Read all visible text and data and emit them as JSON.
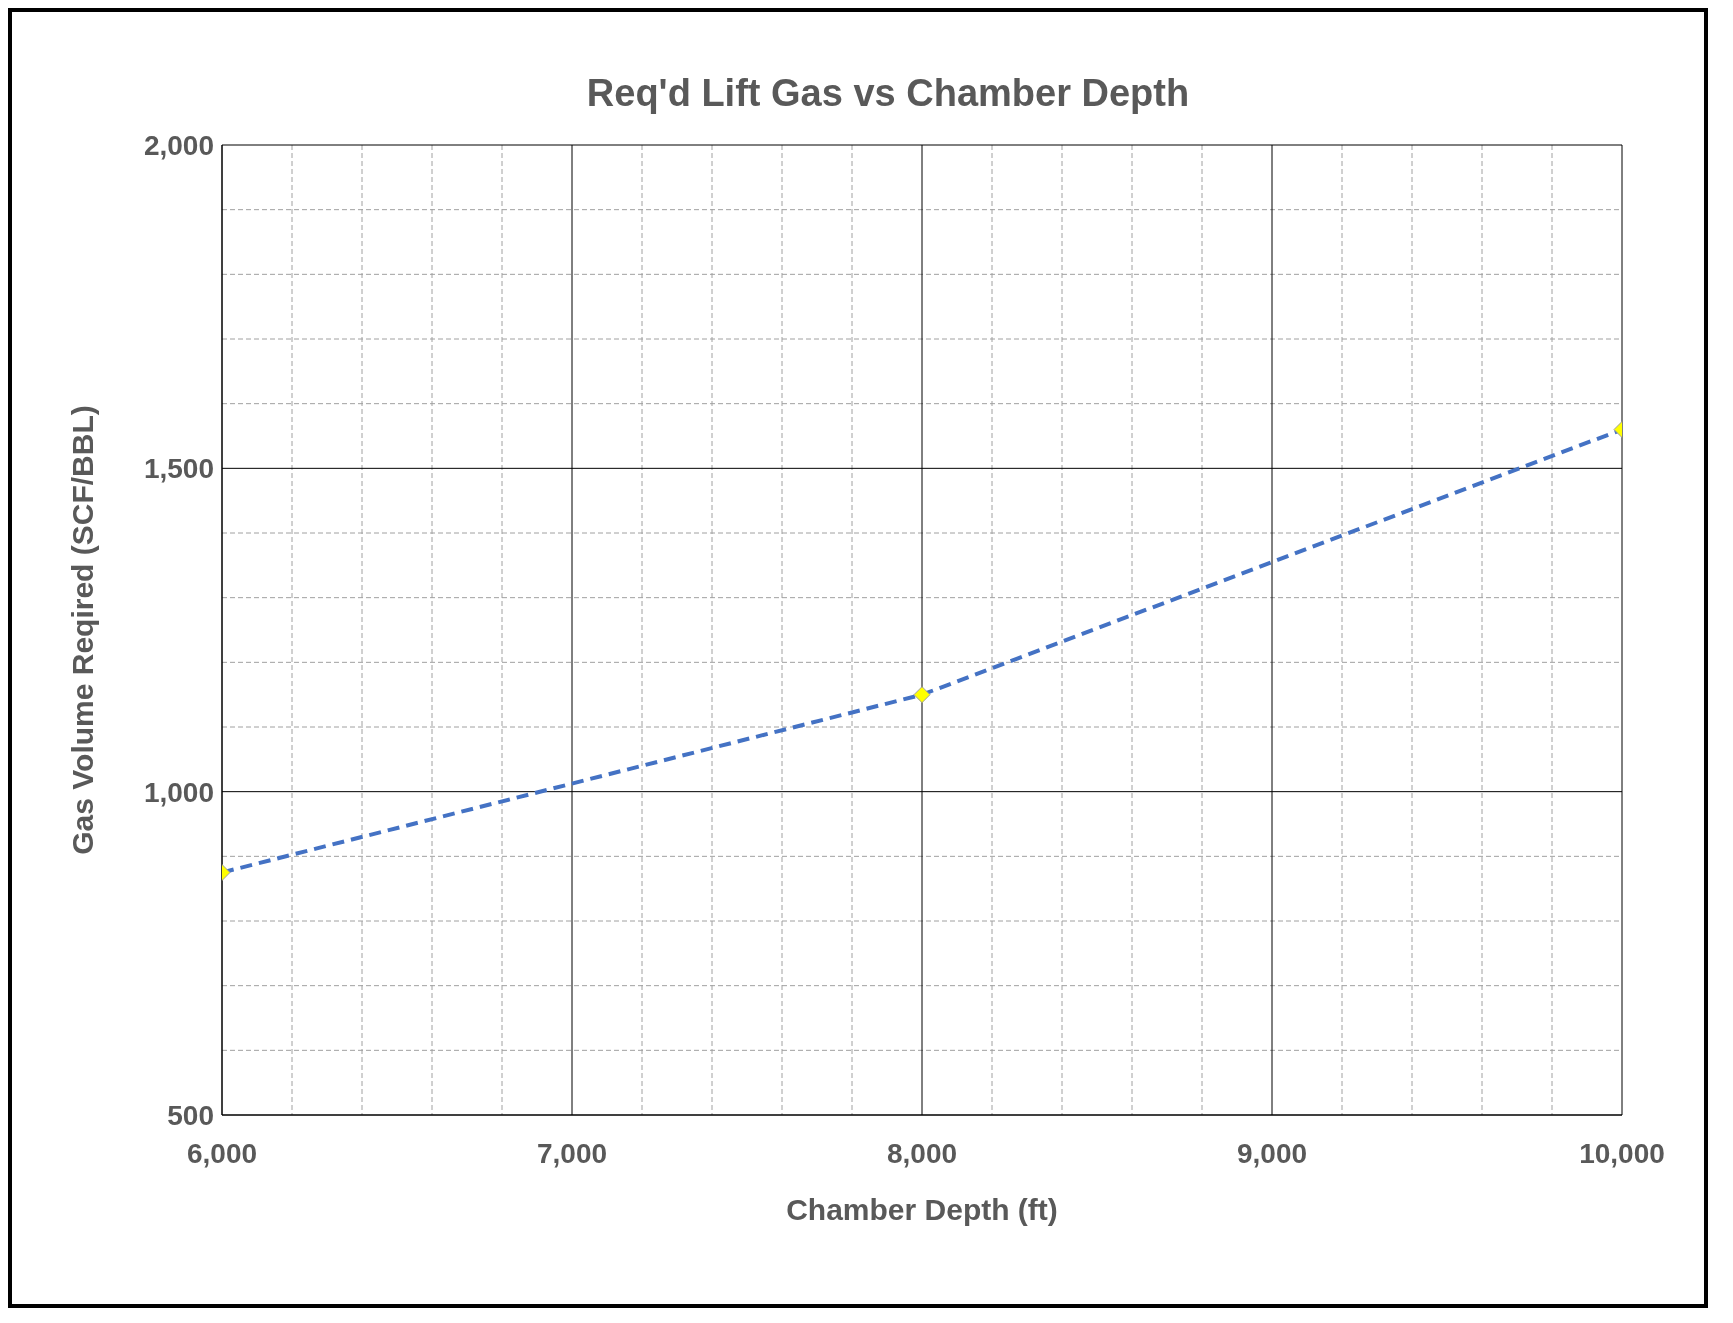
{
  "chart_data": {
    "type": "line",
    "title": "Req'd Lift Gas vs Chamber Depth",
    "xlabel": "Chamber Depth (ft)",
    "ylabel": "Gas Volume Reqired (SCF/BBL)",
    "x": [
      6000,
      8000,
      10000
    ],
    "series": [
      {
        "color": "#4472c4",
        "values": [
          875,
          1150,
          1560
        ]
      }
    ],
    "xlim": [
      6000,
      10000
    ],
    "xticks": [
      {
        "value": 6000,
        "label": "6,000"
      },
      {
        "value": 6200,
        "label": null
      },
      {
        "value": 6400,
        "label": null
      },
      {
        "value": 6600,
        "label": null
      },
      {
        "value": 6800,
        "label": null
      },
      {
        "value": 7000,
        "label": "7,000"
      },
      {
        "value": 7200,
        "label": null
      },
      {
        "value": 7400,
        "label": null
      },
      {
        "value": 7600,
        "label": null
      },
      {
        "value": 7800,
        "label": null
      },
      {
        "value": 8000,
        "label": "8,000"
      },
      {
        "value": 8200,
        "label": null
      },
      {
        "value": 8400,
        "label": null
      },
      {
        "value": 8600,
        "label": null
      },
      {
        "value": 8800,
        "label": null
      },
      {
        "value": 9000,
        "label": "9,000"
      },
      {
        "value": 9200,
        "label": null
      },
      {
        "value": 9400,
        "label": null
      },
      {
        "value": 9600,
        "label": null
      },
      {
        "value": 9800,
        "label": null
      },
      {
        "value": 10000,
        "label": "10,000"
      }
    ],
    "ylim": [
      500,
      2000
    ],
    "yticks": [
      {
        "value": 500,
        "label": "500"
      },
      {
        "value": 600,
        "label": null
      },
      {
        "value": 700,
        "label": null
      },
      {
        "value": 800,
        "label": null
      },
      {
        "value": 900,
        "label": null
      },
      {
        "value": 1000,
        "label": "1,000"
      },
      {
        "value": 1100,
        "label": null
      },
      {
        "value": 1200,
        "label": null
      },
      {
        "value": 1300,
        "label": null
      },
      {
        "value": 1400,
        "label": null
      },
      {
        "value": 1500,
        "label": "1,500"
      },
      {
        "value": 1600,
        "label": null
      },
      {
        "value": 1700,
        "label": null
      },
      {
        "value": 1800,
        "label": null
      },
      {
        "value": 1900,
        "label": null
      },
      {
        "value": 2000,
        "label": "2,000"
      }
    ],
    "grid": true,
    "legend": false,
    "marker": "diamond",
    "line_style": "dashed"
  }
}
